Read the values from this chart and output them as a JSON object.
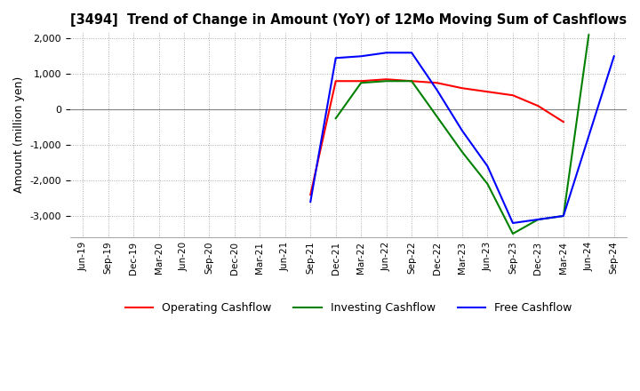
{
  "title": "[3494]  Trend of Change in Amount (YoY) of 12Mo Moving Sum of Cashflows",
  "ylabel": "Amount (million yen)",
  "ylim": [
    -3600,
    2200
  ],
  "yticks": [
    -3000,
    -2000,
    -1000,
    0,
    1000,
    2000
  ],
  "x_labels": [
    "Jun-19",
    "Sep-19",
    "Dec-19",
    "Mar-20",
    "Jun-20",
    "Sep-20",
    "Dec-20",
    "Mar-21",
    "Jun-21",
    "Sep-21",
    "Dec-21",
    "Mar-22",
    "Jun-22",
    "Sep-22",
    "Dec-22",
    "Mar-23",
    "Jun-23",
    "Sep-23",
    "Dec-23",
    "Mar-24",
    "Jun-24",
    "Sep-24"
  ],
  "operating": [
    null,
    null,
    null,
    null,
    null,
    null,
    null,
    null,
    null,
    -2400,
    800,
    800,
    850,
    800,
    750,
    600,
    500,
    400,
    100,
    -350,
    null,
    null
  ],
  "investing": [
    null,
    null,
    null,
    null,
    null,
    null,
    null,
    null,
    null,
    null,
    -250,
    750,
    800,
    800,
    -200,
    -1200,
    -2100,
    -3500,
    -3100,
    -3000,
    2100,
    null
  ],
  "free": [
    null,
    null,
    null,
    null,
    null,
    null,
    null,
    null,
    null,
    -2600,
    1450,
    1500,
    1600,
    1600,
    550,
    -600,
    -1600,
    -3200,
    -3100,
    -3000,
    null,
    1500
  ],
  "operating_color": "#ff0000",
  "investing_color": "#008000",
  "free_color": "#0000ff",
  "background_color": "#ffffff",
  "grid_color": "#aaaaaa"
}
